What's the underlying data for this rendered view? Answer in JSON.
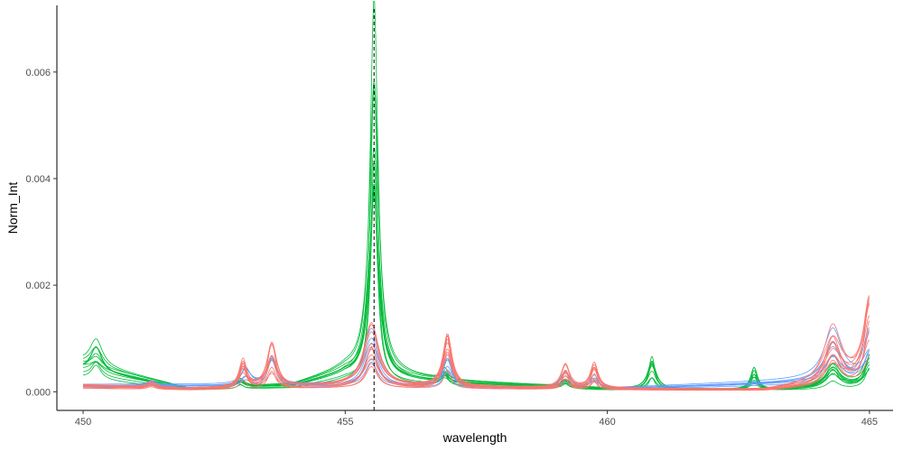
{
  "chart_data": {
    "type": "line",
    "xlabel": "wavelength",
    "ylabel": "Norm_Int",
    "xlim": [
      449.5,
      465.45
    ],
    "ylim": [
      -0.00035,
      0.00725
    ],
    "x_ticks": [
      450,
      455,
      460,
      465
    ],
    "x_tick_labels": [
      "450",
      "455",
      "460",
      "465"
    ],
    "y_ticks": [
      0.0,
      0.002,
      0.004,
      0.006
    ],
    "y_tick_labels": [
      "0.000",
      "0.002",
      "0.004",
      "0.006"
    ],
    "grid": false,
    "legend": "none",
    "reference_line": {
      "x": 455.55,
      "style": "dashed",
      "color": "#000000"
    },
    "series_groups": [
      {
        "color": "#00BA38",
        "count": 10,
        "baseline": [
          [
            450,
            0.0004
          ],
          [
            452,
            5e-05
          ],
          [
            454,
            0.0001
          ],
          [
            455,
            0.0003
          ],
          [
            457,
            0.00015
          ],
          [
            460,
            5e-05
          ],
          [
            463,
            3e-05
          ],
          [
            465,
            0.0001
          ]
        ],
        "peaks": [
          {
            "x": 450.25,
            "y": 0.00045,
            "width": 0.12
          },
          {
            "x": 453.0,
            "y": 0.00015,
            "width": 0.08
          },
          {
            "x": 455.55,
            "y": 0.0068,
            "width": 0.09
          },
          {
            "x": 456.9,
            "y": 0.00025,
            "width": 0.08
          },
          {
            "x": 459.2,
            "y": 0.00015,
            "width": 0.08
          },
          {
            "x": 460.85,
            "y": 0.0006,
            "width": 0.08
          },
          {
            "x": 462.8,
            "y": 0.0004,
            "width": 0.08
          },
          {
            "x": 464.3,
            "y": 0.0004,
            "width": 0.15
          },
          {
            "x": 465.0,
            "y": 0.0006,
            "width": 0.1
          }
        ]
      },
      {
        "color": "#F8766D",
        "count": 10,
        "baseline": [
          [
            450,
            0.0001
          ],
          [
            452,
            5e-05
          ],
          [
            455,
            0.0001
          ],
          [
            460,
            5e-05
          ],
          [
            463,
            3e-05
          ],
          [
            465,
            0.0002
          ]
        ],
        "peaks": [
          {
            "x": 451.3,
            "y": 0.0001,
            "width": 0.1
          },
          {
            "x": 453.05,
            "y": 0.0005,
            "width": 0.08
          },
          {
            "x": 453.6,
            "y": 0.0008,
            "width": 0.1
          },
          {
            "x": 455.5,
            "y": 0.0011,
            "width": 0.15
          },
          {
            "x": 456.95,
            "y": 0.0009,
            "width": 0.09
          },
          {
            "x": 459.2,
            "y": 0.0005,
            "width": 0.08
          },
          {
            "x": 459.75,
            "y": 0.00045,
            "width": 0.08
          },
          {
            "x": 464.3,
            "y": 0.001,
            "width": 0.18
          },
          {
            "x": 465.0,
            "y": 0.0015,
            "width": 0.12
          }
        ]
      },
      {
        "color": "#619CFF",
        "count": 6,
        "baseline": [
          [
            450,
            0.0001
          ],
          [
            455,
            0.0001
          ],
          [
            460,
            5e-05
          ],
          [
            465,
            0.0002
          ]
        ],
        "peaks": [
          {
            "x": 451.3,
            "y": 0.0001,
            "width": 0.1
          },
          {
            "x": 453.1,
            "y": 0.0003,
            "width": 0.1
          },
          {
            "x": 453.6,
            "y": 0.0005,
            "width": 0.1
          },
          {
            "x": 455.5,
            "y": 0.001,
            "width": 0.15
          },
          {
            "x": 456.95,
            "y": 0.0005,
            "width": 0.1
          },
          {
            "x": 459.2,
            "y": 0.0003,
            "width": 0.1
          },
          {
            "x": 459.75,
            "y": 0.0003,
            "width": 0.1
          },
          {
            "x": 464.3,
            "y": 0.0009,
            "width": 0.18
          },
          {
            "x": 465.0,
            "y": 0.0011,
            "width": 0.12
          }
        ]
      }
    ]
  }
}
